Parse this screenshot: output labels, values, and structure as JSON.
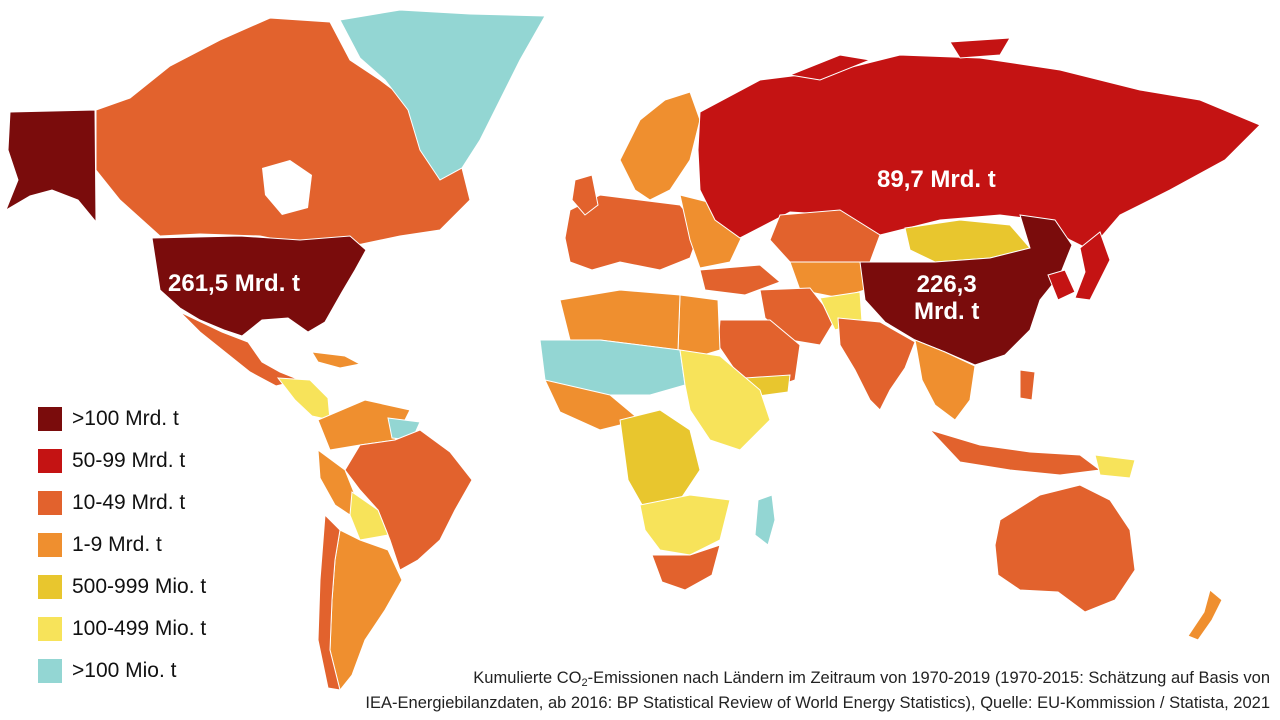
{
  "colors": {
    "over_100_bn": "#7a0c0c",
    "50_99_bn": "#c41313",
    "10_49_bn": "#e2622d",
    "1_9_bn": "#ef8f2f",
    "500_999_mio": "#e8c62e",
    "100_499_mio": "#f7e35a",
    "lowest": "#93d6d3"
  },
  "callouts": {
    "usa": "261,5 Mrd. t",
    "russia": "89,7 Mrd. t",
    "china_line1": "226,3",
    "china_line2": "Mrd. t"
  },
  "legend": [
    {
      "label": ">100 Mrd. t",
      "color": "#7a0c0c"
    },
    {
      "label": "50-99 Mrd. t",
      "color": "#c41313"
    },
    {
      "label": "10-49 Mrd. t",
      "color": "#e2622d"
    },
    {
      "label": "1-9 Mrd. t",
      "color": "#ef8f2f"
    },
    {
      "label": "500-999 Mio. t",
      "color": "#e8c62e"
    },
    {
      "label": "100-499 Mio. t",
      "color": "#f7e35a"
    },
    {
      "label": ">100 Mio. t",
      "color": "#93d6d3"
    }
  ],
  "caption": {
    "part1": "Kumulierte CO",
    "sub": "2",
    "part2": "-Emissionen nach Ländern im Zeitraum von 1970-2019 (1970-2015: Schätzung auf Basis von",
    "line2": "IEA-Energiebilanzdaten, ab 2016: BP Statistical Review of World Energy Statistics), Quelle: EU-Kommission / Statista, 2021"
  },
  "regions": [
    {
      "name": "Alaska",
      "category": "over_100_bn"
    },
    {
      "name": "Canada",
      "category": "10_49_bn"
    },
    {
      "name": "USA",
      "category": "over_100_bn"
    },
    {
      "name": "Greenland",
      "category": "lowest"
    },
    {
      "name": "Mexico",
      "category": "10_49_bn"
    },
    {
      "name": "Brazil",
      "category": "10_49_bn"
    },
    {
      "name": "Argentina",
      "category": "1_9_bn"
    },
    {
      "name": "Russia",
      "category": "50_99_bn"
    },
    {
      "name": "China",
      "category": "over_100_bn"
    },
    {
      "name": "Mongolia",
      "category": "500_999_mio"
    },
    {
      "name": "India",
      "category": "10_49_bn"
    },
    {
      "name": "Japan",
      "category": "50_99_bn"
    },
    {
      "name": "Australia",
      "category": "10_49_bn"
    },
    {
      "name": "Indonesia",
      "category": "10_49_bn"
    },
    {
      "name": "Kazakhstan",
      "category": "10_49_bn"
    },
    {
      "name": "Iran",
      "category": "10_49_bn"
    },
    {
      "name": "Saudi Arabia",
      "category": "10_49_bn"
    },
    {
      "name": "South Africa",
      "category": "10_49_bn"
    },
    {
      "name": "Congo Basin",
      "category": "500_999_mio"
    },
    {
      "name": "Sahel",
      "category": "lowest"
    },
    {
      "name": "Madagascar",
      "category": "lowest"
    },
    {
      "name": "New Zealand",
      "category": "1_9_bn"
    }
  ]
}
